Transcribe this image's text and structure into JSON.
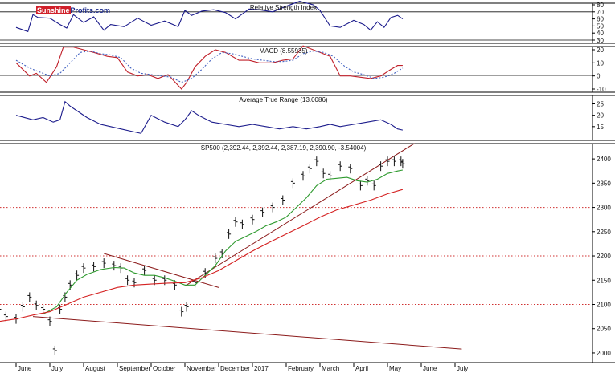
{
  "chart_data": [
    {
      "type": "line",
      "title": "Relative Strength Index",
      "ylim": [
        30,
        80
      ],
      "yticks": [
        "80",
        "70",
        "60",
        "50",
        "40",
        "30"
      ],
      "reference_lines": [
        70,
        30
      ],
      "series": [
        {
          "color": "#1c1c8c",
          "x": [
            0.0,
            0.35,
            0.5,
            0.65,
            1.0,
            1.3,
            1.5,
            1.7,
            2.0,
            2.3,
            2.6,
            2.8,
            3.2,
            3.6,
            4.0,
            4.4,
            4.8,
            5.0,
            5.2,
            5.5,
            5.85,
            6.2,
            6.5,
            6.9,
            7.2,
            7.6,
            8.0,
            8.4,
            8.8,
            9.0,
            9.3,
            9.6,
            10.0,
            10.3,
            10.5,
            10.7,
            10.9,
            11.1,
            11.3,
            11.45
          ],
          "y": [
            48,
            42,
            66,
            62,
            61,
            52,
            47,
            66,
            55,
            63,
            44,
            52,
            49,
            61,
            51,
            57,
            49,
            72,
            65,
            71,
            73,
            69,
            60,
            74,
            73,
            70,
            78,
            85,
            80,
            72,
            50,
            48,
            58,
            52,
            44,
            56,
            48,
            62,
            65,
            60
          ]
        }
      ]
    },
    {
      "type": "line",
      "title": "MACD (8.55935)",
      "ylim": [
        -10,
        20
      ],
      "yticks": [
        "20",
        "10",
        "0",
        "-10"
      ],
      "series": [
        {
          "color": "#c0202a",
          "x": [
            0.0,
            0.4,
            0.6,
            0.9,
            1.2,
            1.4,
            1.7,
            2.0,
            2.3,
            2.7,
            3.0,
            3.3,
            3.6,
            3.9,
            4.2,
            4.5,
            4.9,
            5.05,
            5.3,
            5.6,
            5.9,
            6.2,
            6.6,
            6.9,
            7.2,
            7.6,
            7.9,
            8.2,
            8.5,
            8.8,
            9.0,
            9.3,
            9.6,
            9.9,
            10.2,
            10.5,
            10.8,
            11.1,
            11.3,
            11.45
          ],
          "y": [
            10,
            0,
            2,
            -5,
            7,
            22,
            22,
            20,
            18,
            15,
            14,
            3,
            0,
            1,
            -2,
            1,
            -10,
            -5,
            7,
            15,
            20,
            18,
            12,
            12,
            10,
            10,
            12,
            13,
            23,
            20,
            18,
            15,
            0,
            0,
            -1,
            -2,
            0,
            5,
            8,
            8
          ]
        },
        {
          "color": "#4060c0",
          "dashed": true,
          "x": [
            0.0,
            0.4,
            0.7,
            1.0,
            1.3,
            1.6,
            1.9,
            2.2,
            2.5,
            2.8,
            3.1,
            3.4,
            3.7,
            4.0,
            4.3,
            4.6,
            4.9,
            5.2,
            5.5,
            5.8,
            6.1,
            6.4,
            6.7,
            7.0,
            7.3,
            7.6,
            7.9,
            8.2,
            8.5,
            8.8,
            9.1,
            9.4,
            9.7,
            10.0,
            10.3,
            10.6,
            10.9,
            11.2,
            11.45
          ],
          "y": [
            12,
            6,
            3,
            0,
            2,
            10,
            18,
            19,
            17,
            16,
            14,
            6,
            2,
            1,
            0,
            -1,
            -5,
            -2,
            5,
            13,
            18,
            17,
            15,
            13,
            12,
            11,
            11,
            12,
            17,
            19,
            18,
            15,
            8,
            3,
            1,
            -2,
            -1,
            2,
            6
          ]
        }
      ]
    },
    {
      "type": "line",
      "title": "Average True Range (13.0086)",
      "ylim": [
        10,
        28
      ],
      "yticks": [
        "25",
        "20",
        "15"
      ],
      "series": [
        {
          "color": "#1c1c8c",
          "x": [
            0.0,
            0.5,
            0.8,
            1.1,
            1.3,
            1.45,
            1.6,
            1.8,
            2.1,
            2.5,
            2.8,
            3.1,
            3.4,
            3.7,
            4.0,
            4.4,
            4.8,
            5.0,
            5.2,
            5.4,
            5.8,
            6.2,
            6.6,
            7.0,
            7.4,
            7.8,
            8.2,
            8.6,
            9.0,
            9.3,
            9.6,
            10.0,
            10.4,
            10.8,
            11.1,
            11.3,
            11.45
          ],
          "y": [
            20,
            18,
            19,
            17,
            18,
            26,
            24,
            22,
            19,
            16,
            15,
            14,
            13,
            12,
            20,
            17,
            15,
            18,
            22,
            20,
            17,
            16,
            15,
            16,
            15,
            14,
            15,
            14,
            15,
            16,
            15,
            16,
            17,
            18,
            16,
            14,
            13.5
          ]
        }
      ]
    },
    {
      "type": "line",
      "title": "SP500 (2,392.44, 2,392.44, 2,387.19, 2,390.90, -3.54004)",
      "x_axis": [
        "June",
        "July",
        "August",
        "September",
        "October",
        "November",
        "December",
        "2017",
        "February",
        "March",
        "April",
        "May",
        "June",
        "July"
      ],
      "ylim": [
        1990,
        2425
      ],
      "yticks": [
        "2400",
        "2350",
        "2300",
        "2250",
        "2200",
        "2150",
        "2100",
        "2050",
        "2000"
      ],
      "reference_lines": [
        2300,
        2200,
        2100
      ],
      "series": [
        {
          "color": "#111111",
          "style": "ohlc-bars",
          "x": [
            -0.5,
            -0.3,
            0.0,
            0.2,
            0.4,
            0.6,
            0.8,
            1.0,
            1.15,
            1.3,
            1.45,
            1.6,
            1.8,
            2.0,
            2.3,
            2.6,
            2.9,
            3.1,
            3.3,
            3.5,
            3.8,
            4.1,
            4.4,
            4.7,
            4.9,
            5.05,
            5.3,
            5.6,
            5.9,
            6.1,
            6.3,
            6.5,
            6.7,
            7.0,
            7.3,
            7.6,
            7.9,
            8.2,
            8.5,
            8.7,
            8.9,
            9.1,
            9.3,
            9.6,
            9.9,
            10.2,
            10.4,
            10.6,
            10.8,
            11.0,
            11.2,
            11.4,
            11.45
          ],
          "y": [
            2090,
            2075,
            2070,
            2095,
            2115,
            2098,
            2090,
            2065,
            2005,
            2090,
            2115,
            2140,
            2160,
            2175,
            2178,
            2185,
            2180,
            2175,
            2150,
            2145,
            2170,
            2150,
            2150,
            2140,
            2085,
            2095,
            2145,
            2165,
            2195,
            2205,
            2245,
            2270,
            2265,
            2275,
            2290,
            2300,
            2315,
            2350,
            2365,
            2380,
            2395,
            2370,
            2365,
            2385,
            2380,
            2345,
            2355,
            2345,
            2385,
            2395,
            2395,
            2395,
            2390
          ]
        },
        {
          "color": "#2e9a2e",
          "name": "",
          "x": [
            0.8,
            1.2,
            1.5,
            1.8,
            2.1,
            2.5,
            2.9,
            3.2,
            3.5,
            3.8,
            4.1,
            4.4,
            4.7,
            5.0,
            5.3,
            5.6,
            5.9,
            6.2,
            6.5,
            6.8,
            7.1,
            7.4,
            7.7,
            8.0,
            8.3,
            8.6,
            8.9,
            9.2,
            9.5,
            9.8,
            10.1,
            10.4,
            10.7,
            11.0,
            11.3,
            11.45
          ],
          "y": [
            2080,
            2095,
            2125,
            2150,
            2162,
            2172,
            2176,
            2175,
            2165,
            2160,
            2160,
            2155,
            2148,
            2140,
            2140,
            2160,
            2180,
            2210,
            2230,
            2240,
            2250,
            2262,
            2270,
            2280,
            2300,
            2320,
            2345,
            2358,
            2360,
            2362,
            2355,
            2352,
            2358,
            2370,
            2375,
            2377
          ]
        },
        {
          "color": "#d42020",
          "name": "",
          "x": [
            -0.5,
            0.0,
            0.5,
            1.0,
            1.5,
            2.0,
            2.5,
            3.0,
            3.5,
            4.0,
            4.5,
            5.0,
            5.5,
            6.0,
            6.5,
            7.0,
            7.5,
            8.0,
            8.5,
            9.0,
            9.5,
            10.0,
            10.5,
            11.0,
            11.45
          ],
          "y": [
            2065,
            2070,
            2078,
            2085,
            2100,
            2115,
            2125,
            2135,
            2140,
            2142,
            2144,
            2145,
            2155,
            2170,
            2190,
            2210,
            2228,
            2245,
            2262,
            2280,
            2295,
            2305,
            2315,
            2328,
            2337
          ]
        }
      ],
      "trendlines": [
        {
          "color": "#8b1a1a",
          "x": [
            2.6,
            6.0
          ],
          "y": [
            2205,
            2135
          ]
        },
        {
          "color": "#8b1a1a",
          "x": [
            5.0,
            11.8
          ],
          "y": [
            2138,
            2432
          ]
        },
        {
          "color": "#8b1a1a",
          "x": [
            0.5,
            13.2
          ],
          "y": [
            2075,
            2008
          ]
        }
      ]
    }
  ],
  "logo": {
    "part1": "Sunshine",
    "part2": "Profits.com"
  }
}
